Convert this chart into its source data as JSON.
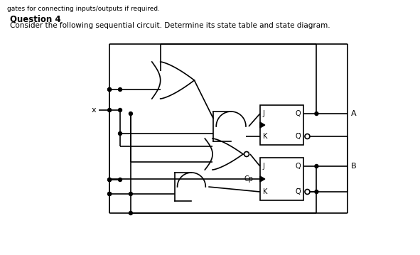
{
  "title": "Question 4",
  "subtitle": "Consider the following sequential circuit. Determine its state table and state diagram.",
  "header": "gates for connecting inputs/outputs if required.",
  "bg": "#ffffff",
  "lc": "#000000",
  "lw": 1.2,
  "fw": 5.91,
  "fh": 3.59,
  "dpi": 100,
  "lx": "x",
  "lA": "A",
  "lB": "B",
  "lCp": "Cp",
  "lJ": "J",
  "lQ": "Q",
  "lK": "K"
}
